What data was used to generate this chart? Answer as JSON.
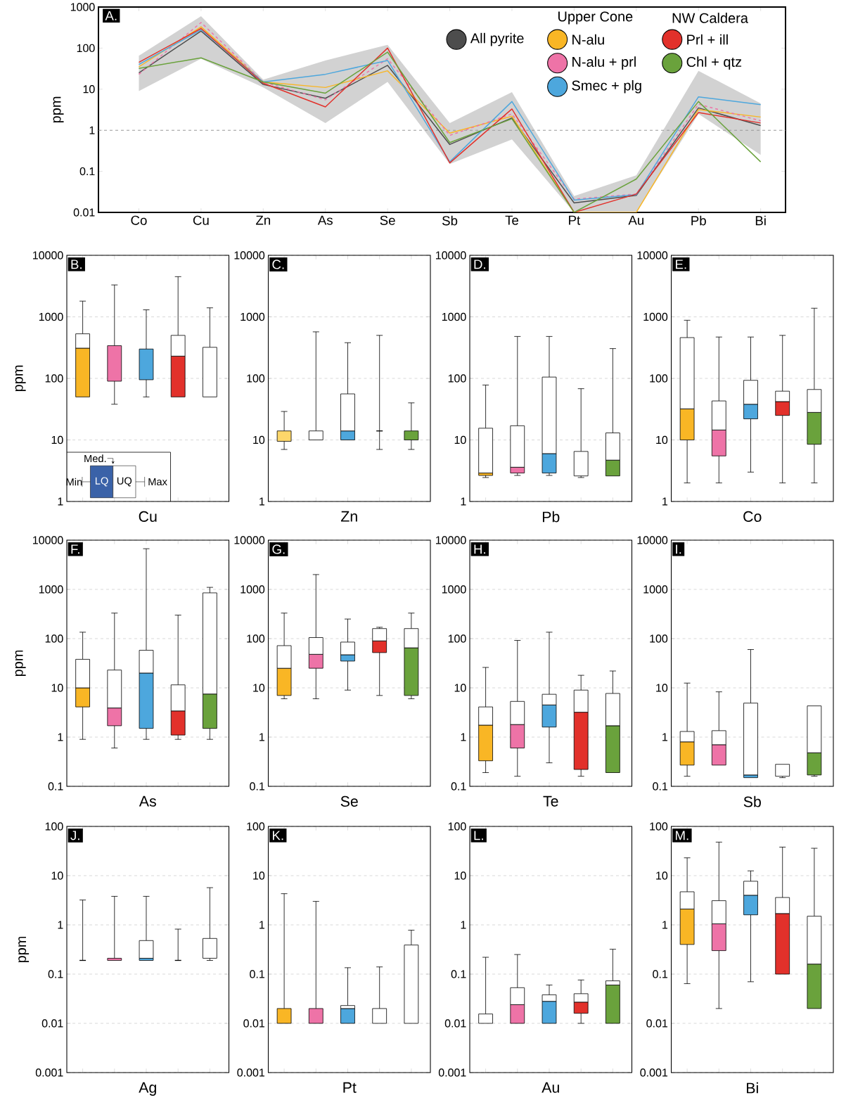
{
  "chart_data": [
    {
      "type": "line",
      "title": "A.",
      "ylabel": "ppm",
      "categories": [
        "Co",
        "Cu",
        "Zn",
        "As",
        "Se",
        "Sb",
        "Te",
        "Pt",
        "Au",
        "Pb",
        "Bi"
      ],
      "log": true,
      "ylim": [
        0.01,
        1000
      ],
      "yticks": [
        0.01,
        0.1,
        1,
        10,
        100,
        1000
      ],
      "legend": "top right",
      "annotations": [
        "Upper Cone",
        "NW Caldera"
      ],
      "ref_lines": [
        {
          "axis": "y",
          "value": 1,
          "color": "#999999",
          "line_style": "dashed"
        }
      ],
      "series": [
        {
          "name": "All pyrite",
          "color": "#4d4d4d",
          "values": [
            25,
            260,
            13,
            6,
            38,
            0.45,
            2,
            0.017,
            0.026,
            3.5,
            1.3
          ],
          "lower": [
            9,
            55,
            11,
            1.5,
            15,
            0.15,
            0.6,
            0.01,
            0.01,
            2.5,
            0.25
          ],
          "upper": [
            65,
            600,
            17,
            50,
            120,
            1.5,
            8.5,
            0.025,
            0.08,
            28,
            4.5
          ]
        },
        {
          "name": "N-alu",
          "color": "#f9b625",
          "values": [
            35,
            330,
            15,
            11,
            28,
            0.85,
            2.2,
            0.01,
            0.01,
            3.2,
            2.1
          ]
        },
        {
          "name": "N-alu + prl",
          "color": "#ee73a7",
          "line_style": "dashed",
          "values": [
            23,
            420,
            15,
            5.5,
            55,
            0.75,
            2.5,
            0.021,
            0.028,
            4.3,
            1.7
          ]
        },
        {
          "name": "Smec + plg",
          "color": "#4da7dd",
          "values": [
            40,
            280,
            15,
            23,
            50,
            0.17,
            5,
            0.02,
            0.027,
            6.5,
            4.2
          ]
        },
        {
          "name": "Prl + ill",
          "color": "#e2312b",
          "values": [
            45,
            300,
            14,
            3.7,
            100,
            0.16,
            3.3,
            0.01,
            0.028,
            2.7,
            1.5
          ]
        },
        {
          "name": "Chl + qtz",
          "color": "#6aa23c",
          "values": [
            32,
            58,
            15,
            8,
            80,
            0.5,
            1.9,
            0.01,
            0.065,
            5,
            0.17
          ]
        }
      ]
    },
    {
      "type": "box",
      "title": "B.",
      "xlabel": "Cu",
      "ylabel": "ppm",
      "log": true,
      "grid": "y",
      "tick_labels": "y",
      "ylim": [
        1,
        10000
      ],
      "yticks": [
        1,
        10,
        100,
        1000,
        10000
      ],
      "categories": [
        null,
        null,
        null,
        null,
        null
      ],
      "colors": [
        "#f9b625",
        "#ee73a7",
        "#4da7dd",
        "#e2312b",
        "#ffffff"
      ],
      "annotations": [
        "Med.",
        "Min",
        "LQ",
        "UQ",
        "Max"
      ],
      "boxes": [
        {
          "low": 50,
          "q1": 50,
          "median": 310,
          "q3": 530,
          "high": 1800
        },
        {
          "low": 38,
          "q1": 90,
          "median": 340,
          "q3": 340,
          "high": 3300
        },
        {
          "low": 50,
          "q1": 95,
          "median": 300,
          "q3": 300,
          "high": 1300
        },
        {
          "low": 50,
          "q1": 50,
          "median": 230,
          "q3": 500,
          "high": 4500
        },
        {
          "low": 50,
          "q1": 50,
          "median": 50,
          "q3": 320,
          "high": 1400
        }
      ]
    },
    {
      "type": "box",
      "title": "C.",
      "xlabel": "Zn",
      "log": true,
      "grid": "y",
      "tick_labels": "y",
      "ylim": [
        1,
        10000
      ],
      "yticks": [
        1,
        10,
        100,
        1000,
        10000
      ],
      "categories": [
        null,
        null,
        null,
        null,
        null
      ],
      "colors": [
        "#fdd76a",
        "#ffffff",
        "#4da7dd",
        "#000000",
        "#6aa23c"
      ],
      "boxes": [
        {
          "low": 7,
          "q1": 9.5,
          "median": 14,
          "q3": 14,
          "high": 29
        },
        {
          "low": 10,
          "q1": 10,
          "median": 10,
          "q3": 14,
          "high": 570
        },
        {
          "low": 10,
          "q1": 10,
          "median": 14,
          "q3": 56,
          "high": 380
        },
        {
          "low": 7,
          "q1": 14,
          "median": 14,
          "q3": 14,
          "high": 500
        },
        {
          "low": 7,
          "q1": 10,
          "median": 14,
          "q3": 14,
          "high": 40
        }
      ]
    },
    {
      "type": "box",
      "title": "D.",
      "xlabel": "Pb",
      "log": true,
      "grid": "y",
      "tick_labels": "y",
      "ylim": [
        1,
        10000
      ],
      "yticks": [
        1,
        10,
        100,
        1000,
        10000
      ],
      "categories": [
        null,
        null,
        null,
        null,
        null
      ],
      "colors": [
        "#f9b625",
        "#ee73a7",
        "#4da7dd",
        "#ffffff",
        "#6aa23c"
      ],
      "boxes": [
        {
          "low": 2.45,
          "q1": 2.65,
          "median": 2.9,
          "q3": 15.5,
          "high": 78
        },
        {
          "low": 2.65,
          "q1": 2.9,
          "median": 3.6,
          "q3": 17,
          "high": 480
        },
        {
          "low": 2.65,
          "q1": 2.9,
          "median": 6,
          "q3": 105,
          "high": 480
        },
        {
          "low": 2.45,
          "q1": 2.6,
          "median": 2.6,
          "q3": 6.5,
          "high": 68
        },
        {
          "low": 2.6,
          "q1": 2.6,
          "median": 4.7,
          "q3": 13,
          "high": 305
        }
      ]
    },
    {
      "type": "box",
      "title": "E.",
      "xlabel": "Co",
      "log": true,
      "grid": "y",
      "tick_labels": "y",
      "ylim": [
        1,
        10000
      ],
      "yticks": [
        1,
        10,
        100,
        1000,
        10000
      ],
      "categories": [
        null,
        null,
        null,
        null,
        null
      ],
      "colors": [
        "#f9b625",
        "#ee73a7",
        "#4da7dd",
        "#e2312b",
        "#6aa23c"
      ],
      "boxes": [
        {
          "low": 2,
          "q1": 10,
          "median": 32,
          "q3": 460,
          "high": 880
        },
        {
          "low": 2,
          "q1": 5.5,
          "median": 14.5,
          "q3": 43,
          "high": 470
        },
        {
          "low": 3,
          "q1": 22,
          "median": 38,
          "q3": 93,
          "high": 470
        },
        {
          "low": 2,
          "q1": 25,
          "median": 42,
          "q3": 62,
          "high": 500
        },
        {
          "low": 2,
          "q1": 8.5,
          "median": 28,
          "q3": 66,
          "high": 1380
        }
      ]
    },
    {
      "type": "box",
      "title": "F.",
      "xlabel": "As",
      "ylabel": "ppm",
      "log": true,
      "grid": "y",
      "tick_labels": "y",
      "ylim": [
        0.1,
        10000
      ],
      "yticks": [
        0.1,
        1,
        10,
        100,
        1000,
        10000
      ],
      "categories": [
        null,
        null,
        null,
        null,
        null
      ],
      "colors": [
        "#f9b625",
        "#ee73a7",
        "#4da7dd",
        "#e2312b",
        "#6aa23c"
      ],
      "boxes": [
        {
          "low": 0.9,
          "q1": 4.1,
          "median": 10,
          "q3": 38,
          "high": 135
        },
        {
          "low": 0.6,
          "q1": 1.7,
          "median": 3.9,
          "q3": 23,
          "high": 330
        },
        {
          "low": 0.9,
          "q1": 1.5,
          "median": 20,
          "q3": 58,
          "high": 6700
        },
        {
          "low": 0.9,
          "q1": 1.1,
          "median": 3.4,
          "q3": 11.5,
          "high": 300
        },
        {
          "low": 0.9,
          "q1": 1.5,
          "median": 7.5,
          "q3": 850,
          "high": 1100
        }
      ]
    },
    {
      "type": "box",
      "title": "G.",
      "xlabel": "Se",
      "log": true,
      "grid": "y",
      "tick_labels": "y",
      "ylim": [
        0.1,
        10000
      ],
      "yticks": [
        0.1,
        1,
        10,
        100,
        1000,
        10000
      ],
      "categories": [
        null,
        null,
        null,
        null,
        null
      ],
      "colors": [
        "#f9b625",
        "#ee73a7",
        "#4da7dd",
        "#e2312b",
        "#6aa23c"
      ],
      "boxes": [
        {
          "low": 6,
          "q1": 7,
          "median": 25,
          "q3": 72,
          "high": 330
        },
        {
          "low": 6,
          "q1": 25,
          "median": 48,
          "q3": 105,
          "high": 2000
        },
        {
          "low": 9,
          "q1": 35,
          "median": 47,
          "q3": 85,
          "high": 250
        },
        {
          "low": 7,
          "q1": 52,
          "median": 90,
          "q3": 160,
          "high": 170
        },
        {
          "low": 6,
          "q1": 7,
          "median": 65,
          "q3": 160,
          "high": 330
        }
      ]
    },
    {
      "type": "box",
      "title": "H.",
      "xlabel": "Te",
      "log": true,
      "grid": "y",
      "tick_labels": "y",
      "ylim": [
        0.1,
        10000
      ],
      "yticks": [
        0.1,
        1,
        10,
        100,
        1000,
        10000
      ],
      "categories": [
        null,
        null,
        null,
        null,
        null
      ],
      "colors": [
        "#f9b625",
        "#ee73a7",
        "#4da7dd",
        "#e2312b",
        "#6aa23c"
      ],
      "boxes": [
        {
          "low": 0.19,
          "q1": 0.33,
          "median": 1.75,
          "q3": 4.1,
          "high": 26
        },
        {
          "low": 0.16,
          "q1": 0.6,
          "median": 1.8,
          "q3": 5.3,
          "high": 92
        },
        {
          "low": 0.3,
          "q1": 1.6,
          "median": 4.5,
          "q3": 7.4,
          "high": 135
        },
        {
          "low": 0.16,
          "q1": 0.22,
          "median": 3.2,
          "q3": 9,
          "high": 18
        },
        {
          "low": 0.19,
          "q1": 0.19,
          "median": 1.7,
          "q3": 7.7,
          "high": 22
        }
      ]
    },
    {
      "type": "box",
      "title": "I.",
      "xlabel": "Sb",
      "log": true,
      "grid": "y",
      "tick_labels": "y",
      "ylim": [
        0.1,
        10000
      ],
      "yticks": [
        0.1,
        1,
        10,
        100,
        1000,
        10000
      ],
      "categories": [
        null,
        null,
        null,
        null,
        null
      ],
      "colors": [
        "#f9b625",
        "#ee73a7",
        "#4da7dd",
        "#ffffff",
        "#6aa23c"
      ],
      "boxes": [
        {
          "low": 0.16,
          "q1": 0.27,
          "median": 0.8,
          "q3": 1.3,
          "high": 12.5
        },
        {
          "low": 0.27,
          "q1": 0.27,
          "median": 0.7,
          "q3": 1.35,
          "high": 8.3
        },
        {
          "low": 0.15,
          "q1": 0.15,
          "median": 0.17,
          "q3": 4.9,
          "high": 60
        },
        {
          "low": 0.15,
          "q1": 0.16,
          "median": 0.16,
          "q3": 0.28,
          "high": 0.28
        },
        {
          "low": 0.16,
          "q1": 0.17,
          "median": 0.48,
          "q3": 4.3,
          "high": 4.3
        }
      ]
    },
    {
      "type": "box",
      "title": "J.",
      "xlabel": "Ag",
      "ylabel": "ppm",
      "log": true,
      "grid": "y",
      "tick_labels": "y",
      "ylim": [
        0.001,
        100
      ],
      "yticks": [
        0.001,
        0.01,
        0.1,
        1,
        10,
        100
      ],
      "categories": [
        null,
        null,
        null,
        null,
        null
      ],
      "colors": [
        "#000000",
        "#ee73a7",
        "#4da7dd",
        "#000000",
        "#ffffff"
      ],
      "boxes": [
        {
          "low": 0.19,
          "q1": 0.19,
          "median": 0.19,
          "q3": 0.19,
          "high": 3.2
        },
        {
          "low": 0.19,
          "q1": 0.19,
          "median": 0.21,
          "q3": 0.21,
          "high": 3.8
        },
        {
          "low": 0.19,
          "q1": 0.19,
          "median": 0.21,
          "q3": 0.48,
          "high": 3.8
        },
        {
          "low": 0.19,
          "q1": 0.19,
          "median": 0.19,
          "q3": 0.19,
          "high": 0.82
        },
        {
          "low": 0.19,
          "q1": 0.21,
          "median": 0.21,
          "q3": 0.53,
          "high": 5.7
        }
      ]
    },
    {
      "type": "box",
      "title": "K.",
      "xlabel": "Pt",
      "log": true,
      "grid": "y",
      "tick_labels": "y",
      "ylim": [
        0.001,
        100
      ],
      "yticks": [
        0.001,
        0.01,
        0.1,
        1,
        10,
        100
      ],
      "categories": [
        null,
        null,
        null,
        null,
        null
      ],
      "colors": [
        "#f9b625",
        "#ee73a7",
        "#4da7dd",
        "#ffffff",
        "#ffffff"
      ],
      "boxes": [
        {
          "low": 0.01,
          "q1": 0.01,
          "median": 0.02,
          "q3": 0.02,
          "high": 4.3
        },
        {
          "low": 0.01,
          "q1": 0.01,
          "median": 0.02,
          "q3": 0.02,
          "high": 3
        },
        {
          "low": 0.01,
          "q1": 0.01,
          "median": 0.02,
          "q3": 0.023,
          "high": 0.135
        },
        {
          "low": 0.01,
          "q1": 0.01,
          "median": 0.01,
          "q3": 0.02,
          "high": 0.14
        },
        {
          "low": 0.01,
          "q1": 0.01,
          "median": 0.01,
          "q3": 0.39,
          "high": 0.78
        }
      ]
    },
    {
      "type": "box",
      "title": "L.",
      "xlabel": "Au",
      "log": true,
      "grid": "y",
      "tick_labels": "y",
      "ylim": [
        0.001,
        100
      ],
      "yticks": [
        0.001,
        0.01,
        0.1,
        1,
        10,
        100
      ],
      "categories": [
        null,
        null,
        null,
        null,
        null
      ],
      "colors": [
        "#ffffff",
        "#ee73a7",
        "#4da7dd",
        "#e2312b",
        "#6aa23c"
      ],
      "boxes": [
        {
          "low": 0.01,
          "q1": 0.01,
          "median": 0.01,
          "q3": 0.0155,
          "high": 0.22
        },
        {
          "low": 0.01,
          "q1": 0.01,
          "median": 0.024,
          "q3": 0.053,
          "high": 0.25
        },
        {
          "low": 0.01,
          "q1": 0.01,
          "median": 0.028,
          "q3": 0.038,
          "high": 0.06
        },
        {
          "low": 0.01,
          "q1": 0.016,
          "median": 0.027,
          "q3": 0.04,
          "high": 0.076
        },
        {
          "low": 0.01,
          "q1": 0.01,
          "median": 0.06,
          "q3": 0.073,
          "high": 0.32
        }
      ]
    },
    {
      "type": "box",
      "title": "M.",
      "xlabel": "Bi",
      "log": true,
      "grid": "y",
      "tick_labels": "y",
      "ylim": [
        0.001,
        100
      ],
      "yticks": [
        0.001,
        0.01,
        0.1,
        1,
        10,
        100
      ],
      "categories": [
        null,
        null,
        null,
        null,
        null
      ],
      "colors": [
        "#f9b625",
        "#ee73a7",
        "#4da7dd",
        "#e2312b",
        "#6aa23c"
      ],
      "boxes": [
        {
          "low": 0.064,
          "q1": 0.4,
          "median": 2.1,
          "q3": 4.7,
          "high": 23
        },
        {
          "low": 0.02,
          "q1": 0.3,
          "median": 1.05,
          "q3": 3.1,
          "high": 48
        },
        {
          "low": 0.07,
          "q1": 1.6,
          "median": 4,
          "q3": 7.7,
          "high": 12.5
        },
        {
          "low": 0.1,
          "q1": 0.1,
          "median": 1.7,
          "q3": 3.6,
          "high": 38
        },
        {
          "low": 0.02,
          "q1": 0.02,
          "median": 0.16,
          "q3": 1.5,
          "high": 36
        }
      ]
    }
  ]
}
